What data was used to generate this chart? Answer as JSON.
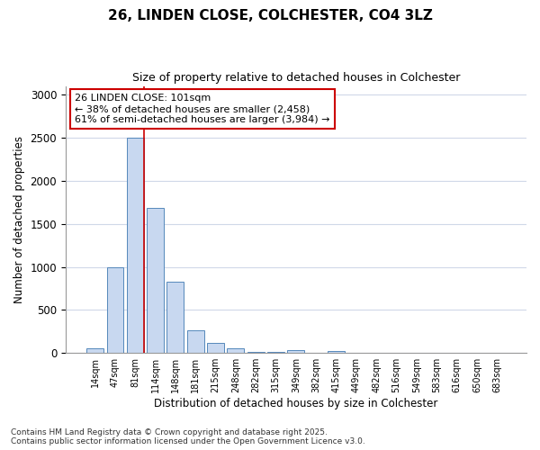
{
  "title_line1": "26, LINDEN CLOSE, COLCHESTER, CO4 3LZ",
  "title_line2": "Size of property relative to detached houses in Colchester",
  "xlabel": "Distribution of detached houses by size in Colchester",
  "ylabel": "Number of detached properties",
  "categories": [
    "14sqm",
    "47sqm",
    "81sqm",
    "114sqm",
    "148sqm",
    "181sqm",
    "215sqm",
    "248sqm",
    "282sqm",
    "315sqm",
    "349sqm",
    "382sqm",
    "415sqm",
    "449sqm",
    "482sqm",
    "516sqm",
    "549sqm",
    "583sqm",
    "616sqm",
    "650sqm",
    "683sqm"
  ],
  "values": [
    50,
    1000,
    2500,
    1680,
    830,
    260,
    120,
    50,
    10,
    10,
    30,
    0,
    20,
    0,
    0,
    0,
    0,
    0,
    0,
    0,
    0
  ],
  "bar_color": "#c8d8f0",
  "bar_edge_color": "#5588bb",
  "vline_x_index": 2.45,
  "annotation_title": "26 LINDEN CLOSE: 101sqm",
  "annotation_line2": "← 38% of detached houses are smaller (2,458)",
  "annotation_line3": "61% of semi-detached houses are larger (3,984) →",
  "annotation_box_facecolor": "#ffffff",
  "annotation_box_edgecolor": "#cc0000",
  "vline_color": "#cc0000",
  "fig_facecolor": "#ffffff",
  "plot_facecolor": "#ffffff",
  "grid_color": "#d0d8e8",
  "ylim": [
    0,
    3100
  ],
  "yticks": [
    0,
    500,
    1000,
    1500,
    2000,
    2500,
    3000
  ],
  "footer_line1": "Contains HM Land Registry data © Crown copyright and database right 2025.",
  "footer_line2": "Contains public sector information licensed under the Open Government Licence v3.0."
}
